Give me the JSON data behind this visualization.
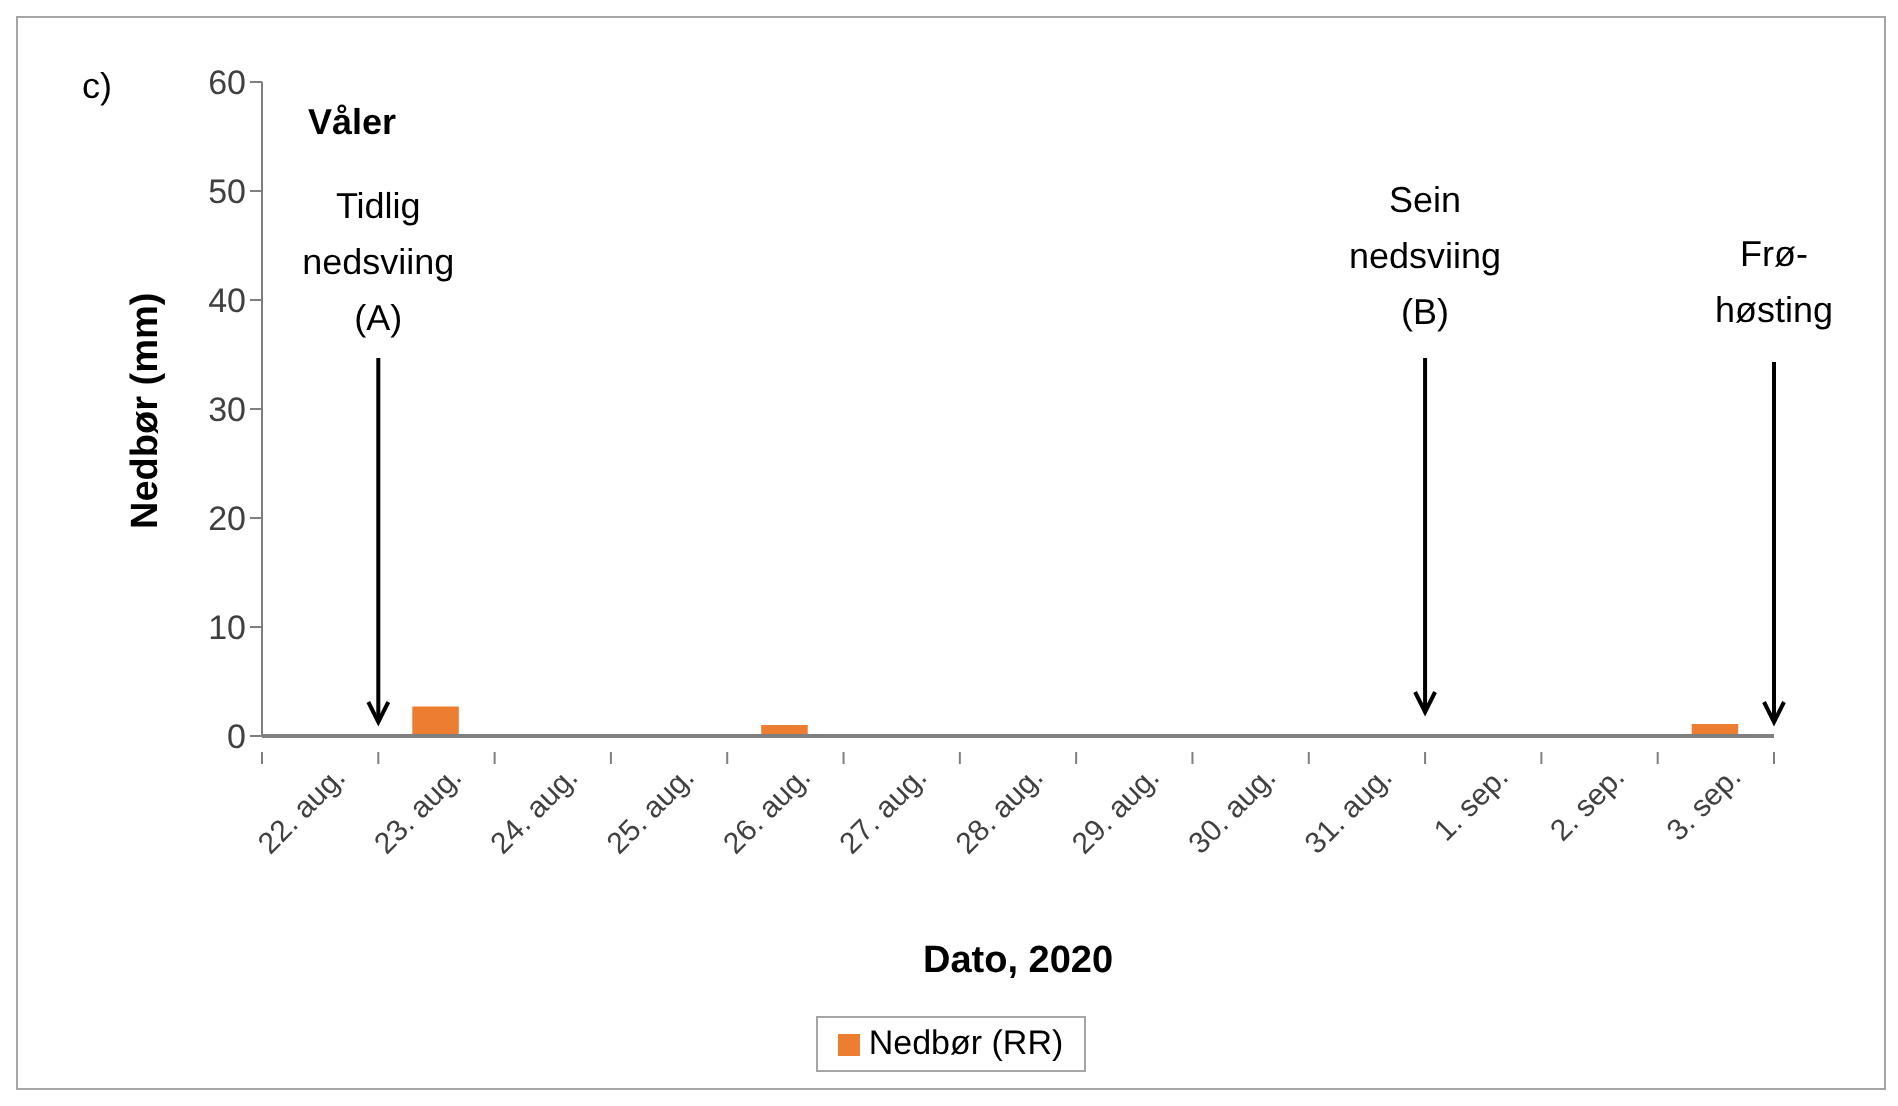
{
  "chart_data": {
    "type": "bar",
    "xlabel": "Dato, 2020",
    "ylabel": "Nedbør (mm)",
    "categories": [
      "22. aug.",
      "23. aug.",
      "24. aug.",
      "25. aug.",
      "26. aug.",
      "27. aug.",
      "28. aug.",
      "29. aug.",
      "30. aug.",
      "31. aug.",
      "1. sep.",
      "2. sep.",
      "3. sep."
    ],
    "series": [
      {
        "name": "Nedbør (RR)",
        "color": "#ed7d31",
        "values": [
          0,
          2.7,
          0,
          0,
          1.0,
          0,
          0,
          0,
          0,
          0,
          0,
          0,
          1.1
        ]
      }
    ],
    "ylim": [
      0,
      60
    ],
    "yticks": [
      0,
      10,
      20,
      30,
      40,
      50,
      60
    ],
    "grid": false,
    "legend": "bottom",
    "annotations": [
      "c)",
      "Våler",
      "Tidlig\nnedsviing\n(A)",
      "Sein\nnedsviing\n(B)",
      "Frø-\nhøsting"
    ]
  }
}
